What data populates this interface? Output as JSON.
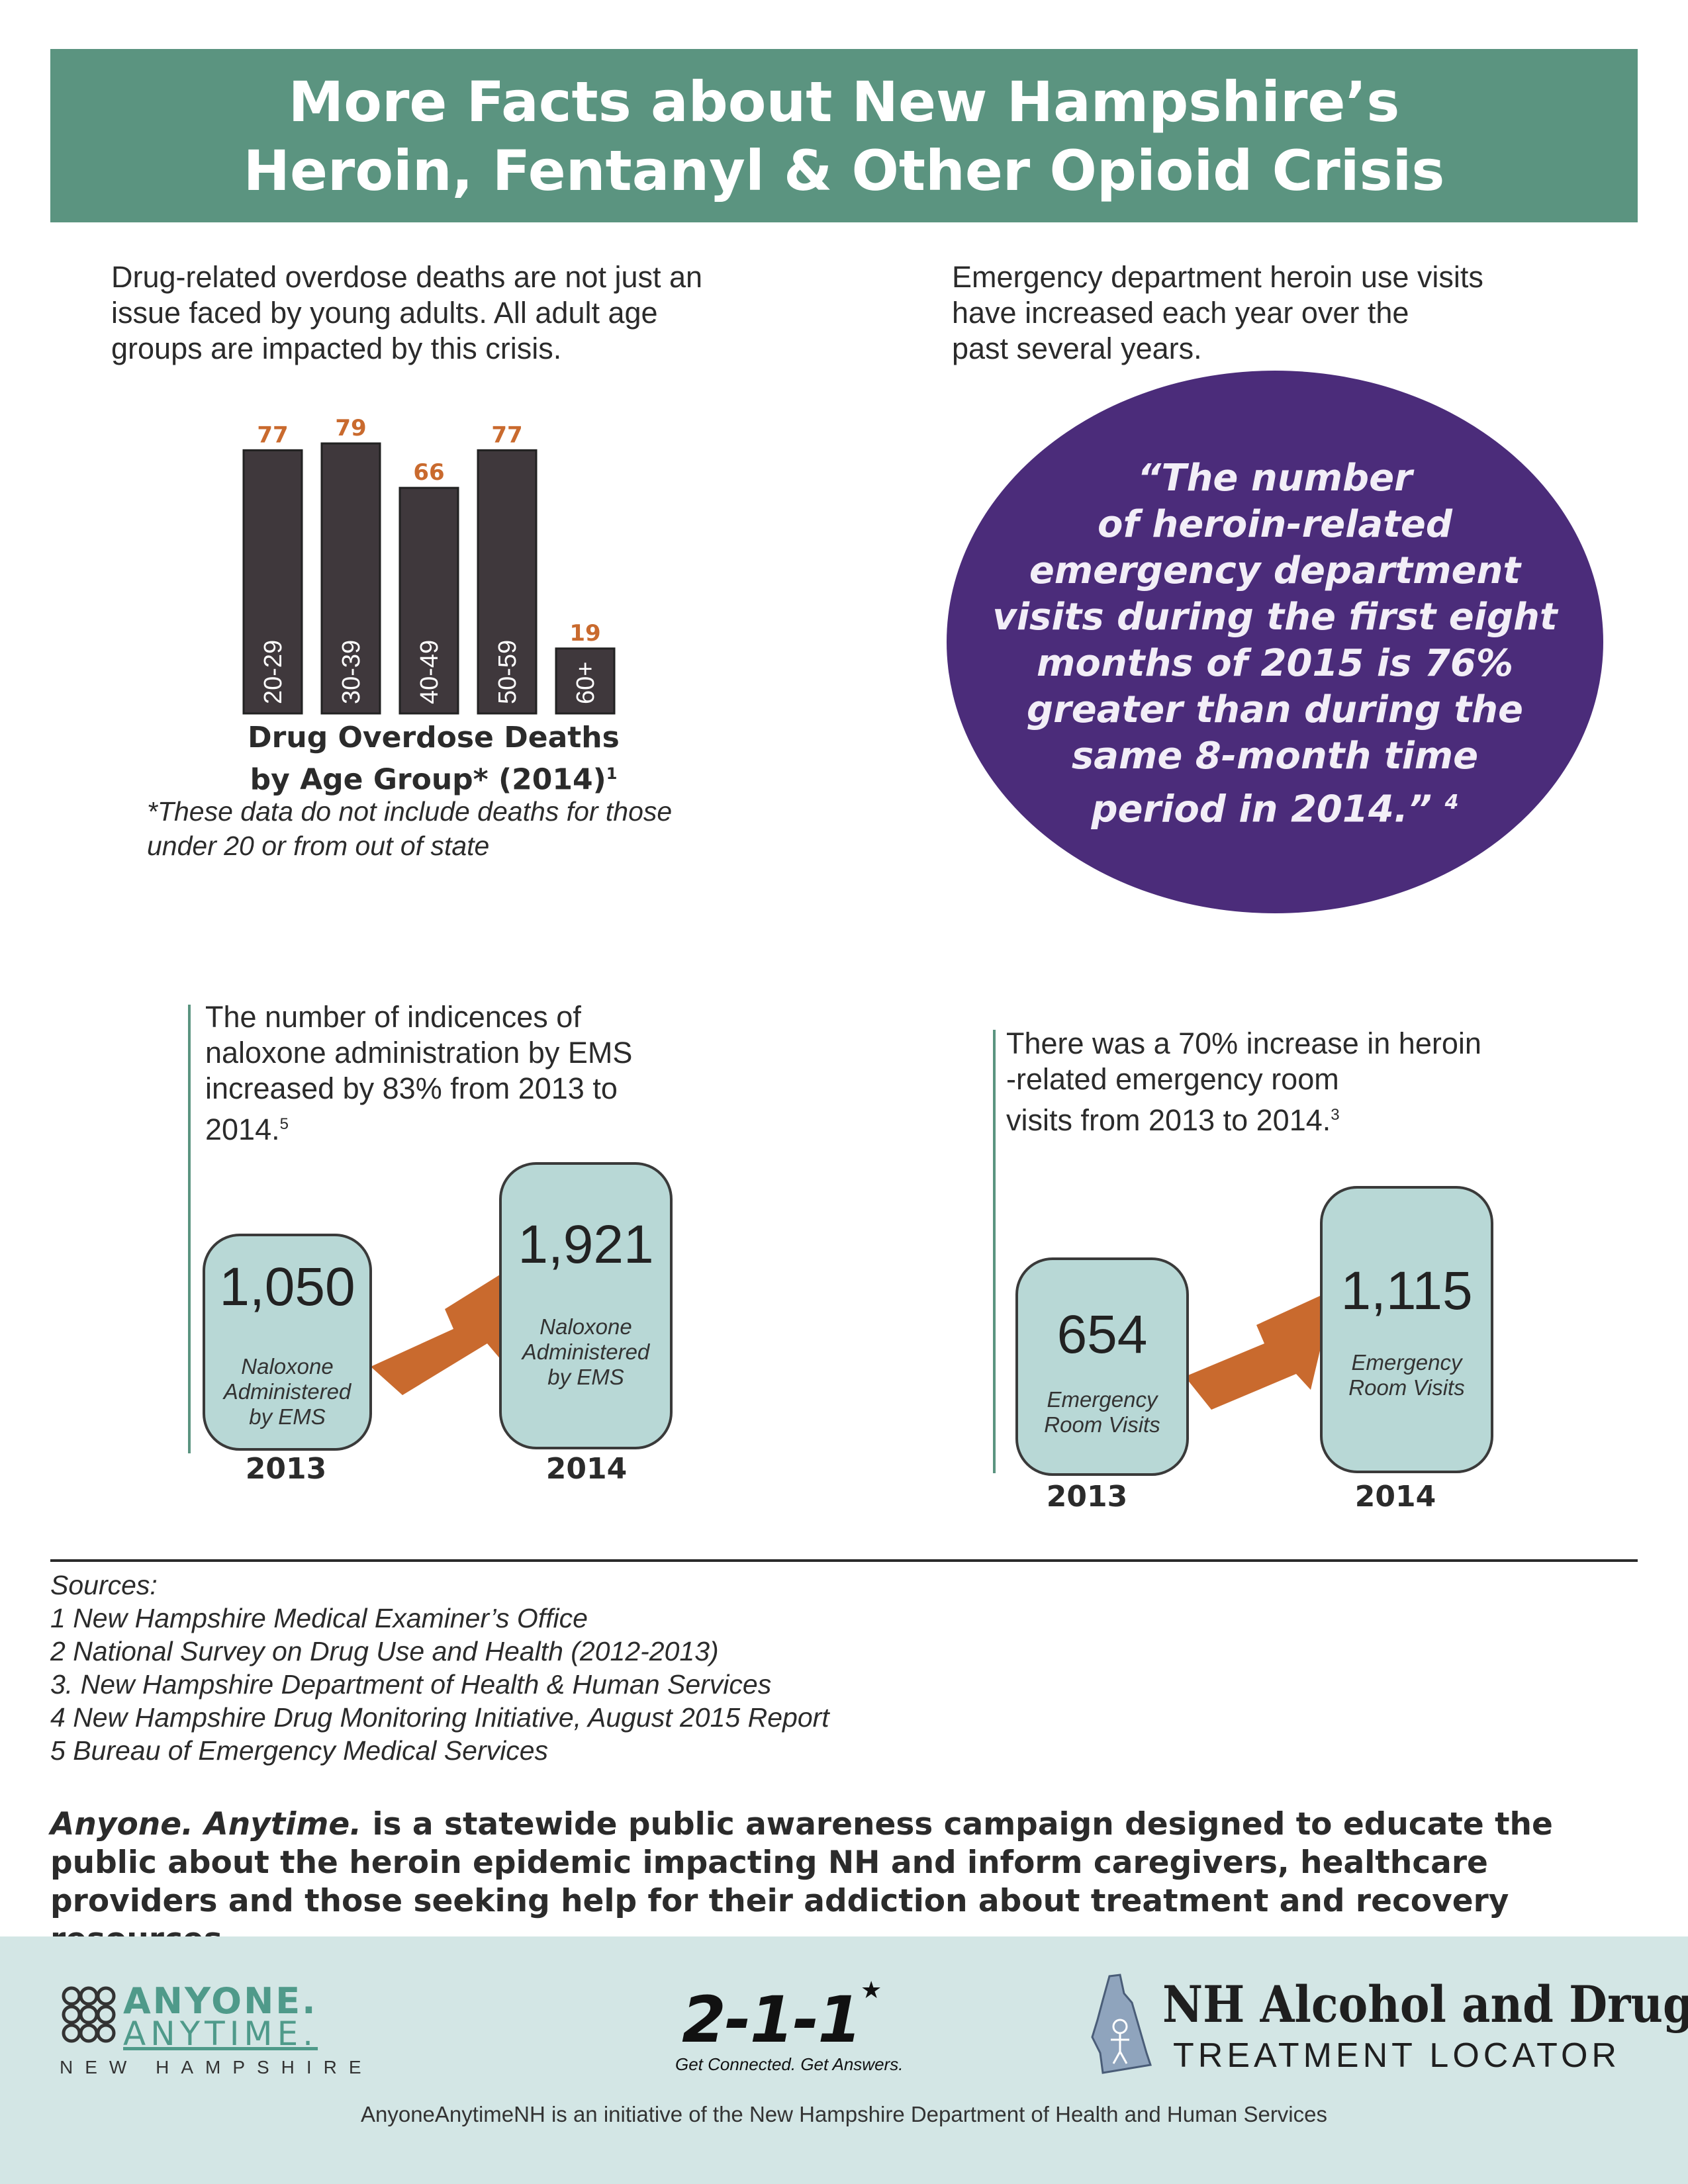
{
  "header": {
    "title": "More Facts about New Hampshire’s\nHeroin, Fentanyl & Other Opioid Crisis",
    "color": "#5b9480"
  },
  "left_section": {
    "intro": [
      "Drug-related overdose deaths are not just an",
      "issue faced by young adults. All adult age",
      "groups are impacted by this crisis."
    ],
    "chart_title": "Drug Overdose Deaths\nby Age Group* (2014)",
    "chart_title_ref": "1",
    "chart_note": [
      "*These data do not include deaths for those",
      "under 20 or from out of state"
    ]
  },
  "chart_data": {
    "type": "bar",
    "title": "Drug Overdose Deaths by Age Group* (2014)",
    "categories": [
      "20-29",
      "30-39",
      "40-49",
      "50-59",
      "60+"
    ],
    "values": [
      77,
      79,
      66,
      77,
      19
    ],
    "bar_color": "#3f383c",
    "label_color": "#c96a2e",
    "ylim": [
      0,
      79
    ]
  },
  "right_section": {
    "intro": [
      "Emergency department heroin use visits",
      "have increased each year over the",
      "past several years."
    ],
    "quote": "“The number\nof heroin-related\nemergency department\nvisits during the first eight\nmonths of 2015 is 76%\ngreater than during the\nsame 8-month time\nperiod in 2014.”",
    "quote_ref": "4",
    "quote_color": "#4b2c7a"
  },
  "naloxone": {
    "desc": [
      "The number of indicences of",
      "naloxone administration by EMS",
      "increased by 83% from 2013 to",
      "2014."
    ],
    "desc_ref": "5",
    "box_2013": {
      "value": "1,050",
      "label": "Naloxone\nAdministered\nby EMS",
      "year": "2013"
    },
    "box_2014": {
      "value": "1,921",
      "label": "Naloxone\nAdministered\nby EMS",
      "year": "2014"
    }
  },
  "er_visits": {
    "desc": [
      "There was a 70% increase in heroin",
      "-related emergency room",
      "visits from 2013 to 2014."
    ],
    "desc_ref": "3",
    "box_2013": {
      "value": "654",
      "label": "Emergency\nRoom Visits",
      "year": "2013"
    },
    "box_2014": {
      "value": "1,115",
      "label": "Emergency\nRoom Visits",
      "year": "2014"
    }
  },
  "arrow_color": "#c96a2e",
  "sources": {
    "heading": "Sources:",
    "items": [
      "1 New Hampshire Medical Examiner’s Office",
      "2 National Survey on Drug Use and Health (2012-2013)",
      "3. New Hampshire Department of Health & Human Services",
      "4 New Hampshire Drug Monitoring Initiative, August 2015 Report",
      "5 Bureau of Emergency Medical Services"
    ]
  },
  "campaign": {
    "name": "Anyone. Anytime.",
    "text": " is a statewide public awareness campaign designed to educate the public about the heroin epidemic impacting NH and inform caregivers, healthcare providers and those seeking help for their addiction about treatment and recovery resources."
  },
  "footer": {
    "logo1_line1": "ANYONE.",
    "logo1_line2": "ANYTIME.",
    "logo1_line3": "NEW HAMPSHIRE",
    "logo2_mark": "2-1-1",
    "logo2_tagline": "Get Connected. Get Answers.",
    "logo3_line1": "NH Alcohol and Drug",
    "logo3_line2": "TREATMENT LOCATOR",
    "note": "AnyoneAnytimeNH is an initiative of the New Hampshire Department of Health and Human Services"
  }
}
